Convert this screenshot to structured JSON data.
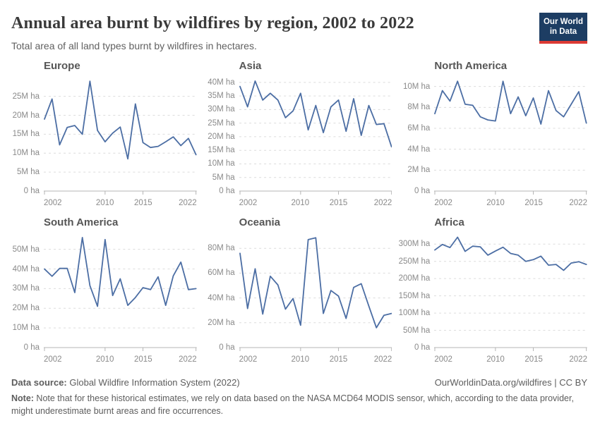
{
  "header": {
    "title": "Annual area burnt by wildfires by region, 2002 to 2022",
    "subtitle": "Total area of all land types burnt by wildfires in hectares.",
    "logo_line1": "Our World",
    "logo_line2": "in Data"
  },
  "footer": {
    "datasource_label": "Data source:",
    "datasource_value": " Global Wildfire Information System (2022)",
    "link": "OurWorldinData.org/wildfires | CC BY",
    "note_label": "Note:",
    "note_value": " Note that for these historical estimates, we rely on data based on the NASA MCD64 MODIS sensor, which, according to the data provider, might underestimate burnt areas and fire occurrences."
  },
  "colors": {
    "line": "#4c6ea4",
    "grid": "#dcdcdc",
    "axis": "#b5b5b5",
    "tick_text": "#8a8a8a",
    "logo_bg": "#1d3d63",
    "logo_red": "#dc3a34"
  },
  "chart_data": [
    {
      "type": "line",
      "title": "Europe",
      "unit": "hectares",
      "x": [
        2002,
        2003,
        2004,
        2005,
        2006,
        2007,
        2008,
        2009,
        2010,
        2011,
        2012,
        2013,
        2014,
        2015,
        2016,
        2017,
        2018,
        2019,
        2020,
        2021,
        2022
      ],
      "values": [
        19,
        24.3,
        12.2,
        16.8,
        17.3,
        15,
        29,
        16,
        13,
        15.3,
        16.9,
        8.5,
        23,
        12.8,
        11.5,
        11.8,
        13,
        14.3,
        12,
        13.9,
        9.6
      ],
      "ylim": [
        0,
        29.4
      ],
      "ytick_values": [
        25,
        20,
        15,
        10,
        5,
        0
      ],
      "ytick_labels": [
        "25M ha",
        "20M ha",
        "15M ha",
        "10M ha",
        "5M ha",
        "0 ha"
      ],
      "xticks": [
        2002,
        2010,
        2015,
        2022
      ]
    },
    {
      "type": "line",
      "title": "Asia",
      "unit": "hectares",
      "x": [
        2002,
        2003,
        2004,
        2005,
        2006,
        2007,
        2008,
        2009,
        2010,
        2011,
        2012,
        2013,
        2014,
        2015,
        2016,
        2017,
        2018,
        2019,
        2020,
        2021,
        2022
      ],
      "values": [
        38.5,
        31,
        40.5,
        33.5,
        36,
        33.5,
        27,
        29.5,
        36,
        22.5,
        31.5,
        21.5,
        31,
        33.5,
        22,
        34,
        20.5,
        31.5,
        24.5,
        24.8,
        16.3
      ],
      "ylim": [
        0,
        41
      ],
      "ytick_values": [
        40,
        35,
        30,
        25,
        20,
        15,
        10,
        5,
        0
      ],
      "ytick_labels": [
        "40M ha",
        "35M ha",
        "30M ha",
        "25M ha",
        "20M ha",
        "15M ha",
        "10M ha",
        "5M ha",
        "0 ha"
      ],
      "xticks": [
        2002,
        2010,
        2015,
        2022
      ]
    },
    {
      "type": "line",
      "title": "North America",
      "unit": "hectares",
      "x": [
        2002,
        2003,
        2004,
        2005,
        2006,
        2007,
        2008,
        2009,
        2010,
        2011,
        2012,
        2013,
        2014,
        2015,
        2016,
        2017,
        2018,
        2019,
        2020,
        2021,
        2022
      ],
      "values": [
        7.4,
        9.6,
        8.6,
        10.5,
        8.3,
        8.2,
        7.1,
        6.8,
        6.7,
        10.5,
        7.4,
        9,
        7.2,
        8.9,
        6.4,
        9.6,
        7.7,
        7.1,
        8.3,
        9.5,
        6.5
      ],
      "ylim": [
        0,
        10.65
      ],
      "ytick_values": [
        10,
        8,
        6,
        4,
        2,
        0
      ],
      "ytick_labels": [
        "10M ha",
        "8M ha",
        "6M ha",
        "4M ha",
        "2M ha",
        "0 ha"
      ],
      "xticks": [
        2002,
        2010,
        2015,
        2022
      ]
    },
    {
      "type": "line",
      "title": "South America",
      "unit": "hectares",
      "x": [
        2002,
        2003,
        2004,
        2005,
        2006,
        2007,
        2008,
        2009,
        2010,
        2011,
        2012,
        2013,
        2014,
        2015,
        2016,
        2017,
        2018,
        2019,
        2020,
        2021,
        2022
      ],
      "values": [
        40,
        36.3,
        40.3,
        40.3,
        28,
        56,
        31.5,
        21,
        55,
        26.5,
        35,
        21.5,
        25.5,
        30.5,
        29.5,
        36,
        21.5,
        36.5,
        43.5,
        29.5,
        30
      ],
      "ylim": [
        0,
        56.7
      ],
      "ytick_values": [
        50,
        40,
        30,
        20,
        10,
        0
      ],
      "ytick_labels": [
        "50M ha",
        "40M ha",
        "30M ha",
        "20M ha",
        "10M ha",
        "0 ha"
      ],
      "xticks": [
        2002,
        2010,
        2015,
        2022
      ]
    },
    {
      "type": "line",
      "title": "Oceania",
      "unit": "hectares",
      "x": [
        2002,
        2003,
        2004,
        2005,
        2006,
        2007,
        2008,
        2009,
        2010,
        2011,
        2012,
        2013,
        2014,
        2015,
        2016,
        2017,
        2018,
        2019,
        2020,
        2021,
        2022
      ],
      "values": [
        76,
        31.5,
        63.5,
        27,
        57.5,
        50.5,
        31,
        39.5,
        18,
        87,
        88.5,
        27.5,
        46,
        41.5,
        23.5,
        48.5,
        51.5,
        33.5,
        16,
        26,
        27.5
      ],
      "ylim": [
        0,
        89.8
      ],
      "ytick_values": [
        80,
        60,
        40,
        20,
        0
      ],
      "ytick_labels": [
        "80M ha",
        "60M ha",
        "40M ha",
        "20M ha",
        "0 ha"
      ],
      "xticks": [
        2002,
        2010,
        2015,
        2022
      ]
    },
    {
      "type": "line",
      "title": "Africa",
      "unit": "hectares",
      "x": [
        2002,
        2003,
        2004,
        2005,
        2006,
        2007,
        2008,
        2009,
        2010,
        2011,
        2012,
        2013,
        2014,
        2015,
        2016,
        2017,
        2018,
        2019,
        2020,
        2021,
        2022
      ],
      "values": [
        283,
        299,
        290,
        320,
        279,
        294,
        292,
        268,
        280,
        291,
        273,
        268,
        250,
        255,
        265,
        239,
        241,
        224,
        245,
        249,
        241
      ],
      "ylim": [
        0,
        323
      ],
      "ytick_values": [
        300,
        250,
        200,
        150,
        100,
        50,
        0
      ],
      "ytick_labels": [
        "300M ha",
        "250M ha",
        "200M ha",
        "150M ha",
        "100M ha",
        "50M ha",
        "0 ha"
      ],
      "xticks": [
        2002,
        2010,
        2015,
        2022
      ]
    }
  ]
}
